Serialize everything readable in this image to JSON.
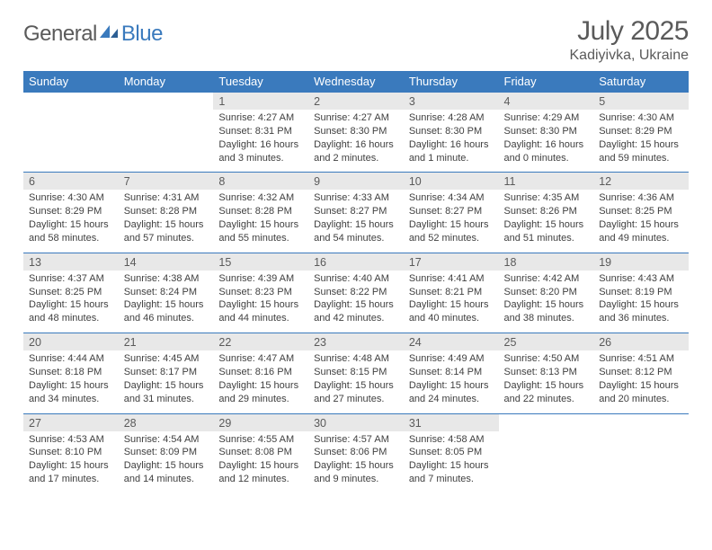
{
  "logo": {
    "text1": "General",
    "text2": "Blue"
  },
  "title": "July 2025",
  "location": "Kadiyivka, Ukraine",
  "colors": {
    "header_bg": "#3a7abd",
    "header_text": "#ffffff",
    "daynum_bg": "#e8e8e8",
    "border": "#3a7abd",
    "text": "#404040",
    "title_text": "#5a5a5a"
  },
  "weekdays": [
    "Sunday",
    "Monday",
    "Tuesday",
    "Wednesday",
    "Thursday",
    "Friday",
    "Saturday"
  ],
  "weeks": [
    [
      null,
      null,
      {
        "n": "1",
        "sr": "4:27 AM",
        "ss": "8:31 PM",
        "dl": "16 hours and 3 minutes."
      },
      {
        "n": "2",
        "sr": "4:27 AM",
        "ss": "8:30 PM",
        "dl": "16 hours and 2 minutes."
      },
      {
        "n": "3",
        "sr": "4:28 AM",
        "ss": "8:30 PM",
        "dl": "16 hours and 1 minute."
      },
      {
        "n": "4",
        "sr": "4:29 AM",
        "ss": "8:30 PM",
        "dl": "16 hours and 0 minutes."
      },
      {
        "n": "5",
        "sr": "4:30 AM",
        "ss": "8:29 PM",
        "dl": "15 hours and 59 minutes."
      }
    ],
    [
      {
        "n": "6",
        "sr": "4:30 AM",
        "ss": "8:29 PM",
        "dl": "15 hours and 58 minutes."
      },
      {
        "n": "7",
        "sr": "4:31 AM",
        "ss": "8:28 PM",
        "dl": "15 hours and 57 minutes."
      },
      {
        "n": "8",
        "sr": "4:32 AM",
        "ss": "8:28 PM",
        "dl": "15 hours and 55 minutes."
      },
      {
        "n": "9",
        "sr": "4:33 AM",
        "ss": "8:27 PM",
        "dl": "15 hours and 54 minutes."
      },
      {
        "n": "10",
        "sr": "4:34 AM",
        "ss": "8:27 PM",
        "dl": "15 hours and 52 minutes."
      },
      {
        "n": "11",
        "sr": "4:35 AM",
        "ss": "8:26 PM",
        "dl": "15 hours and 51 minutes."
      },
      {
        "n": "12",
        "sr": "4:36 AM",
        "ss": "8:25 PM",
        "dl": "15 hours and 49 minutes."
      }
    ],
    [
      {
        "n": "13",
        "sr": "4:37 AM",
        "ss": "8:25 PM",
        "dl": "15 hours and 48 minutes."
      },
      {
        "n": "14",
        "sr": "4:38 AM",
        "ss": "8:24 PM",
        "dl": "15 hours and 46 minutes."
      },
      {
        "n": "15",
        "sr": "4:39 AM",
        "ss": "8:23 PM",
        "dl": "15 hours and 44 minutes."
      },
      {
        "n": "16",
        "sr": "4:40 AM",
        "ss": "8:22 PM",
        "dl": "15 hours and 42 minutes."
      },
      {
        "n": "17",
        "sr": "4:41 AM",
        "ss": "8:21 PM",
        "dl": "15 hours and 40 minutes."
      },
      {
        "n": "18",
        "sr": "4:42 AM",
        "ss": "8:20 PM",
        "dl": "15 hours and 38 minutes."
      },
      {
        "n": "19",
        "sr": "4:43 AM",
        "ss": "8:19 PM",
        "dl": "15 hours and 36 minutes."
      }
    ],
    [
      {
        "n": "20",
        "sr": "4:44 AM",
        "ss": "8:18 PM",
        "dl": "15 hours and 34 minutes."
      },
      {
        "n": "21",
        "sr": "4:45 AM",
        "ss": "8:17 PM",
        "dl": "15 hours and 31 minutes."
      },
      {
        "n": "22",
        "sr": "4:47 AM",
        "ss": "8:16 PM",
        "dl": "15 hours and 29 minutes."
      },
      {
        "n": "23",
        "sr": "4:48 AM",
        "ss": "8:15 PM",
        "dl": "15 hours and 27 minutes."
      },
      {
        "n": "24",
        "sr": "4:49 AM",
        "ss": "8:14 PM",
        "dl": "15 hours and 24 minutes."
      },
      {
        "n": "25",
        "sr": "4:50 AM",
        "ss": "8:13 PM",
        "dl": "15 hours and 22 minutes."
      },
      {
        "n": "26",
        "sr": "4:51 AM",
        "ss": "8:12 PM",
        "dl": "15 hours and 20 minutes."
      }
    ],
    [
      {
        "n": "27",
        "sr": "4:53 AM",
        "ss": "8:10 PM",
        "dl": "15 hours and 17 minutes."
      },
      {
        "n": "28",
        "sr": "4:54 AM",
        "ss": "8:09 PM",
        "dl": "15 hours and 14 minutes."
      },
      {
        "n": "29",
        "sr": "4:55 AM",
        "ss": "8:08 PM",
        "dl": "15 hours and 12 minutes."
      },
      {
        "n": "30",
        "sr": "4:57 AM",
        "ss": "8:06 PM",
        "dl": "15 hours and 9 minutes."
      },
      {
        "n": "31",
        "sr": "4:58 AM",
        "ss": "8:05 PM",
        "dl": "15 hours and 7 minutes."
      },
      null,
      null
    ]
  ],
  "labels": {
    "sunrise": "Sunrise:",
    "sunset": "Sunset:",
    "daylight": "Daylight:"
  }
}
